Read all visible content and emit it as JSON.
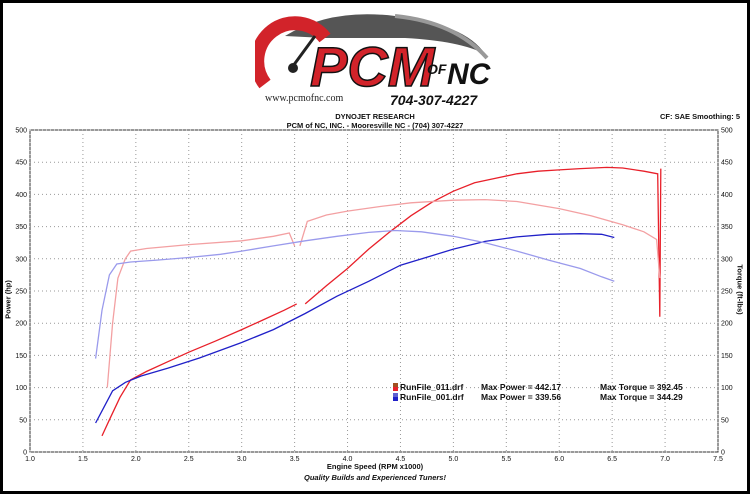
{
  "header": {
    "logo_main": "PCM",
    "logo_of": "OF",
    "logo_nc": "NC",
    "url": "www.pcmofnc.com",
    "phone": "704-307-4227",
    "line1": "DYNOJET RESEARCH",
    "line2": "PCM of NC, INC. - Mooresville NC - (704) 307-4227",
    "correction": "CF: SAE  Smoothing: 5"
  },
  "footer": "Quality Builds and Experienced Tuners!",
  "chart_data": {
    "type": "line",
    "xlabel": "Engine Speed (RPM x1000)",
    "ylabel_left": "Power (hp)",
    "ylabel_right": "Torque (ft-lbs)",
    "xlim": [
      1.0,
      7.5
    ],
    "ylim": [
      0,
      500
    ],
    "x_ticks": [
      "1.0",
      "1.5",
      "2.0",
      "2.5",
      "3.0",
      "3.5",
      "4.0",
      "4.5",
      "5.0",
      "5.5",
      "6.0",
      "6.5",
      "7.0",
      "7.5"
    ],
    "y_ticks": [
      "0",
      "50",
      "100",
      "150",
      "200",
      "250",
      "300",
      "350",
      "400",
      "450",
      "500"
    ],
    "grid": true,
    "series": [
      {
        "name": "RunFile_011.drf Power",
        "color": "#e8202a",
        "segments": [
          [
            [
              1.68,
              25
            ],
            [
              1.75,
              50
            ],
            [
              1.85,
              85
            ],
            [
              1.95,
              112
            ],
            [
              2.1,
              125
            ],
            [
              2.3,
              140
            ],
            [
              2.5,
              155
            ],
            [
              2.75,
              172
            ],
            [
              3.0,
              190
            ],
            [
              3.2,
              205
            ],
            [
              3.4,
              220
            ],
            [
              3.52,
              230
            ]
          ],
          [
            [
              3.6,
              230
            ],
            [
              3.8,
              258
            ],
            [
              4.0,
              285
            ],
            [
              4.2,
              315
            ],
            [
              4.4,
              342
            ],
            [
              4.6,
              367
            ],
            [
              4.8,
              388
            ],
            [
              5.0,
              405
            ],
            [
              5.2,
              418
            ],
            [
              5.4,
              425
            ],
            [
              5.6,
              432
            ],
            [
              5.8,
              436
            ],
            [
              6.0,
              438
            ],
            [
              6.2,
              440
            ],
            [
              6.45,
              442
            ],
            [
              6.6,
              441
            ],
            [
              6.8,
              436
            ],
            [
              6.93,
              432
            ],
            [
              6.95,
              210
            ],
            [
              6.96,
              440
            ]
          ]
        ]
      },
      {
        "name": "RunFile_011.drf Torque",
        "color": "#f3a0a2",
        "segments": [
          [
            [
              1.73,
              100
            ],
            [
              1.78,
              200
            ],
            [
              1.83,
              270
            ],
            [
              1.9,
              300
            ],
            [
              1.95,
              312
            ],
            [
              2.1,
              316
            ],
            [
              2.5,
              322
            ],
            [
              3.0,
              328
            ],
            [
              3.3,
              335
            ],
            [
              3.45,
              340
            ],
            [
              3.5,
              320
            ]
          ],
          [
            [
              3.55,
              320
            ],
            [
              3.62,
              358
            ],
            [
              3.8,
              368
            ],
            [
              4.0,
              374
            ],
            [
              4.3,
              381
            ],
            [
              4.6,
              387
            ],
            [
              5.0,
              391
            ],
            [
              5.3,
              392
            ],
            [
              5.6,
              389
            ],
            [
              6.0,
              378
            ],
            [
              6.3,
              367
            ],
            [
              6.6,
              353
            ],
            [
              6.8,
              342
            ],
            [
              6.92,
              330
            ],
            [
              6.95,
              270
            ]
          ]
        ]
      },
      {
        "name": "RunFile_001.drf Power",
        "color": "#2020c8",
        "segments": [
          [
            [
              1.62,
              45
            ],
            [
              1.7,
              70
            ],
            [
              1.78,
              95
            ],
            [
              1.9,
              108
            ],
            [
              2.05,
              118
            ],
            [
              2.3,
              130
            ],
            [
              2.6,
              146
            ],
            [
              3.0,
              170
            ],
            [
              3.3,
              190
            ],
            [
              3.6,
              215
            ],
            [
              3.9,
              242
            ],
            [
              4.2,
              265
            ],
            [
              4.5,
              290
            ],
            [
              4.8,
              305
            ],
            [
              5.0,
              315
            ],
            [
              5.3,
              327
            ],
            [
              5.6,
              334
            ],
            [
              5.9,
              338
            ],
            [
              6.2,
              339
            ],
            [
              6.4,
              338
            ],
            [
              6.52,
              333
            ]
          ]
        ]
      },
      {
        "name": "RunFile_001.drf Torque",
        "color": "#9a9aec",
        "segments": [
          [
            [
              1.62,
              145
            ],
            [
              1.68,
              220
            ],
            [
              1.75,
              275
            ],
            [
              1.82,
              292
            ],
            [
              1.95,
              295
            ],
            [
              2.2,
              298
            ],
            [
              2.5,
              302
            ],
            [
              2.8,
              307
            ],
            [
              3.0,
              312
            ],
            [
              3.3,
              320
            ],
            [
              3.6,
              328
            ],
            [
              3.9,
              335
            ],
            [
              4.2,
              341
            ],
            [
              4.45,
              344
            ],
            [
              4.7,
              342
            ],
            [
              5.0,
              335
            ],
            [
              5.3,
              325
            ],
            [
              5.6,
              312
            ],
            [
              5.9,
              298
            ],
            [
              6.2,
              285
            ],
            [
              6.4,
              272
            ],
            [
              6.52,
              265
            ]
          ]
        ]
      }
    ],
    "legend": [
      {
        "file": "RunFile_011.drf",
        "max_power_label": "Max Power =",
        "max_power": "442.17",
        "max_torque_label": "Max Torque =",
        "max_torque": "392.45",
        "color_a": "#e8202a",
        "color_b": "#a05020"
      },
      {
        "file": "RunFile_001.drf",
        "max_power_label": "Max Power =",
        "max_power": "339.56",
        "max_torque_label": "Max Torque =",
        "max_torque": "344.29",
        "color_a": "#2020c8",
        "color_b": "#6060d0"
      }
    ],
    "legend_placement": "bottom-right"
  }
}
